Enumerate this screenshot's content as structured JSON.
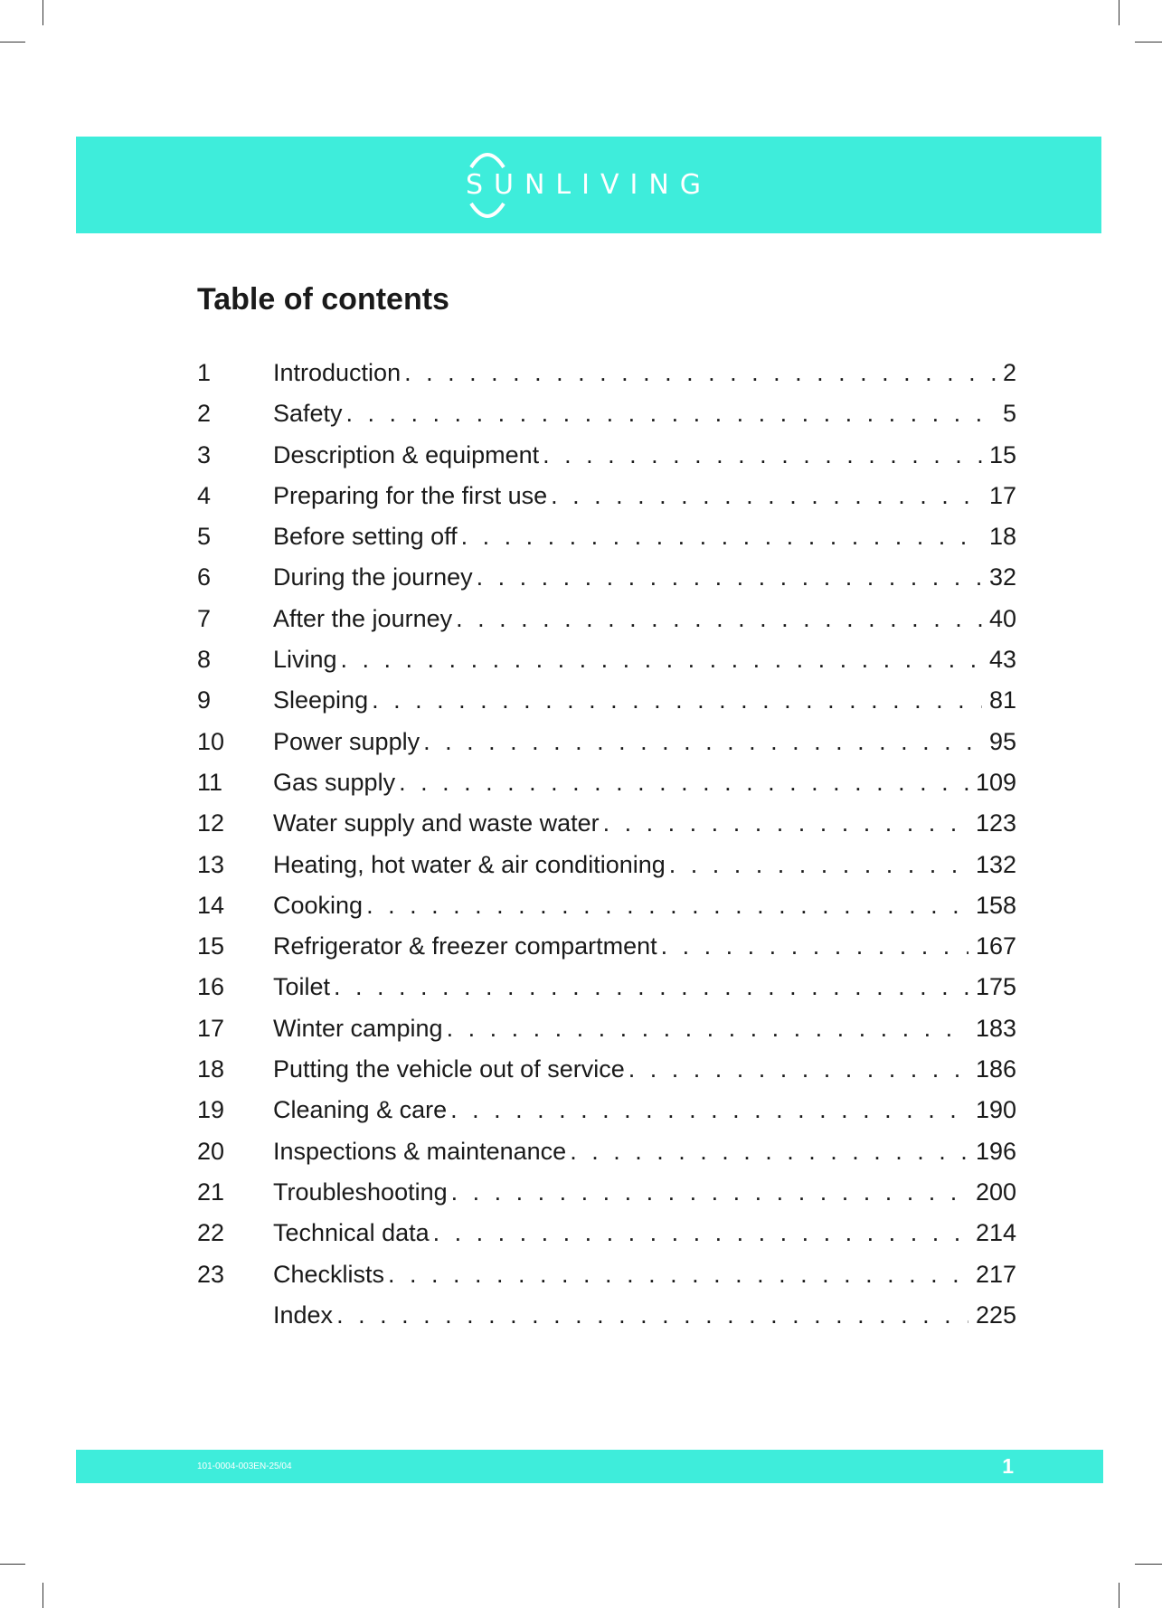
{
  "brand": {
    "logo_text": "SUNLIVING",
    "color": "#3eeddb"
  },
  "title": "Table of contents",
  "toc": [
    {
      "num": "1",
      "label": "Introduction",
      "page": "2"
    },
    {
      "num": "2",
      "label": "Safety",
      "page": "5"
    },
    {
      "num": "3",
      "label": "Description & equipment",
      "page": "15"
    },
    {
      "num": "4",
      "label": "Preparing for the first use",
      "page": "17"
    },
    {
      "num": "5",
      "label": "Before setting off",
      "page": "18"
    },
    {
      "num": "6",
      "label": "During the journey",
      "page": "32"
    },
    {
      "num": "7",
      "label": "After the journey",
      "page": "40"
    },
    {
      "num": "8",
      "label": "Living",
      "page": "43"
    },
    {
      "num": "9",
      "label": "Sleeping",
      "page": "81"
    },
    {
      "num": "10",
      "label": "Power supply",
      "page": "95"
    },
    {
      "num": "11",
      "label": "Gas supply",
      "page": "109"
    },
    {
      "num": "12",
      "label": "Water supply and waste water",
      "page": "123"
    },
    {
      "num": "13",
      "label": "Heating, hot water & air conditioning",
      "page": "132"
    },
    {
      "num": "14",
      "label": "Cooking",
      "page": "158"
    },
    {
      "num": "15",
      "label": "Refrigerator & freezer compartment",
      "page": "167"
    },
    {
      "num": "16",
      "label": "Toilet",
      "page": "175"
    },
    {
      "num": "17",
      "label": "Winter camping",
      "page": "183"
    },
    {
      "num": "18",
      "label": "Putting the vehicle out of service",
      "page": "186"
    },
    {
      "num": "19",
      "label": "Cleaning & care",
      "page": "190"
    },
    {
      "num": "20",
      "label": "Inspections & maintenance",
      "page": "196"
    },
    {
      "num": "21",
      "label": "Troubleshooting",
      "page": "200"
    },
    {
      "num": "22",
      "label": "Technical data",
      "page": "214"
    },
    {
      "num": "23",
      "label": "Checklists",
      "page": "217"
    },
    {
      "num": "",
      "label": "Index",
      "page": "225"
    }
  ],
  "footer": {
    "doc_code": "101-0004-003EN-25/04",
    "page_number": "1"
  }
}
